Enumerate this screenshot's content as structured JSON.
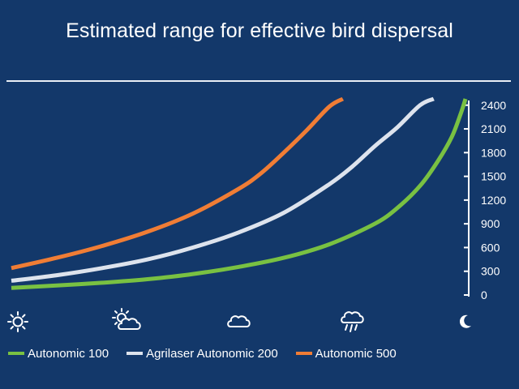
{
  "title": "Estimated range for effective bird dispersal",
  "colors": {
    "background": "#13386a",
    "text": "#ffffff",
    "axis": "#ffffff"
  },
  "chart_data": {
    "type": "line",
    "title": "Estimated range for effective bird dispersal",
    "xlabel": "",
    "ylabel": "",
    "y_axis_side": "right",
    "ylim": [
      0,
      2500
    ],
    "yticks": [
      "0",
      "300",
      "600",
      "900",
      "1200",
      "1500",
      "1800",
      "2100",
      "2400"
    ],
    "ytick_values": [
      0,
      300,
      600,
      900,
      1200,
      1500,
      1800,
      2100,
      2400
    ],
    "xlim": [
      0,
      1
    ],
    "x_categories": [
      {
        "icon": "sun-icon",
        "x": 0.0
      },
      {
        "icon": "partly-cloudy-icon",
        "x": 0.25
      },
      {
        "icon": "cloud-icon",
        "x": 0.5
      },
      {
        "icon": "rain-cloud-icon",
        "x": 0.75
      },
      {
        "icon": "moon-icon",
        "x": 1.0
      }
    ],
    "grid": false,
    "legend_position": "bottom",
    "series": [
      {
        "name": "Autonomic 100",
        "color": "#79c142",
        "x": [
          0,
          0.1,
          0.2,
          0.3,
          0.4,
          0.5,
          0.6,
          0.7,
          0.8,
          0.85,
          0.9,
          0.94,
          0.97,
          0.99,
          1.0
        ],
        "y": [
          90,
          120,
          155,
          200,
          265,
          355,
          470,
          640,
          900,
          1100,
          1380,
          1700,
          2000,
          2300,
          2480
        ]
      },
      {
        "name": "Agrilaser Autonomic 200",
        "color": "#dde3ed",
        "x": [
          0,
          0.1,
          0.2,
          0.3,
          0.4,
          0.5,
          0.6,
          0.7,
          0.75,
          0.8,
          0.85,
          0.9,
          0.93
        ],
        "y": [
          180,
          250,
          340,
          450,
          600,
          790,
          1040,
          1400,
          1620,
          1880,
          2120,
          2400,
          2480
        ]
      },
      {
        "name": "Autonomic 500",
        "color": "#f07d35",
        "x": [
          0,
          0.1,
          0.2,
          0.3,
          0.4,
          0.5,
          0.55,
          0.6,
          0.65,
          0.7,
          0.73
        ],
        "y": [
          340,
          470,
          620,
          800,
          1030,
          1340,
          1540,
          1800,
          2080,
          2380,
          2480
        ]
      }
    ]
  }
}
